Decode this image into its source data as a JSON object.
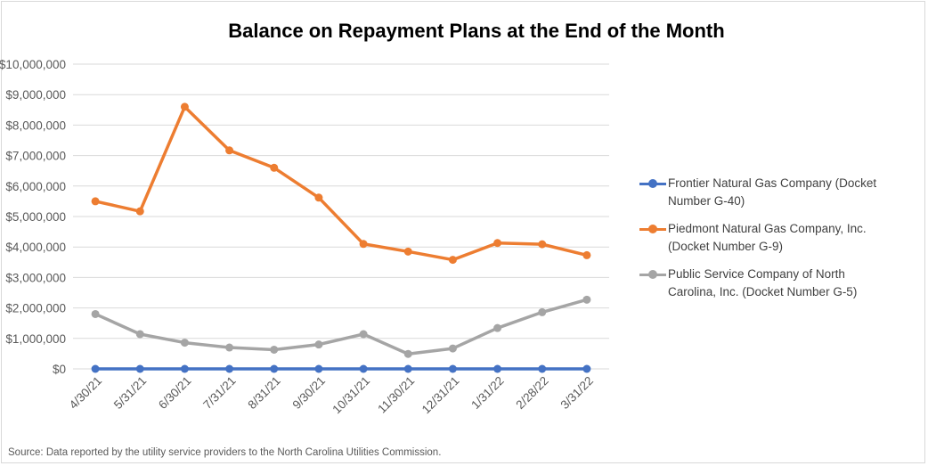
{
  "chart_data": {
    "type": "line",
    "title": "Balance on Repayment Plans at the End of the Month",
    "categories": [
      "4/30/21",
      "5/31/21",
      "6/30/21",
      "7/31/21",
      "8/31/21",
      "9/30/21",
      "10/31/21",
      "11/30/21",
      "12/31/21",
      "1/31/22",
      "2/28/22",
      "3/31/22"
    ],
    "ylim": [
      0,
      10000000
    ],
    "yticks": [
      0,
      1000000,
      2000000,
      3000000,
      4000000,
      5000000,
      6000000,
      7000000,
      8000000,
      9000000,
      10000000
    ],
    "ytick_labels": [
      "$0",
      "$1,000,000",
      "$2,000,000",
      "$3,000,000",
      "$4,000,000",
      "$5,000,000",
      "$6,000,000",
      "$7,000,000",
      "$8,000,000",
      "$9,000,000",
      "$10,000,000"
    ],
    "grid": true,
    "legend_position": "right",
    "series": [
      {
        "name": "Frontier Natural Gas Company (Docket Number G-40)",
        "color": "#4472c4",
        "values": [
          0,
          0,
          0,
          0,
          0,
          0,
          0,
          0,
          0,
          0,
          0,
          0
        ]
      },
      {
        "name": "Piedmont Natural Gas Company, Inc. (Docket Number G-9)",
        "color": "#ed7d31",
        "values": [
          5500000,
          5170000,
          8600000,
          7170000,
          6600000,
          5620000,
          4100000,
          3850000,
          3580000,
          4130000,
          4090000,
          3730000
        ]
      },
      {
        "name": "Public Service Company of North Carolina, Inc. (Docket Number G-5)",
        "color": "#a5a5a5",
        "values": [
          1800000,
          1140000,
          860000,
          700000,
          630000,
          800000,
          1140000,
          490000,
          670000,
          1340000,
          1860000,
          2270000
        ]
      }
    ],
    "legend_lines": [
      [
        "Frontier Natural Gas Company (Docket",
        "Number G-40)"
      ],
      [
        "Piedmont Natural Gas Company, Inc.",
        "(Docket Number G-9)"
      ],
      [
        "Public Service Company of North",
        "Carolina, Inc. (Docket Number G-5)"
      ]
    ],
    "source": "Source: Data reported by the utility service providers to the North Carolina Utilities Commission."
  }
}
